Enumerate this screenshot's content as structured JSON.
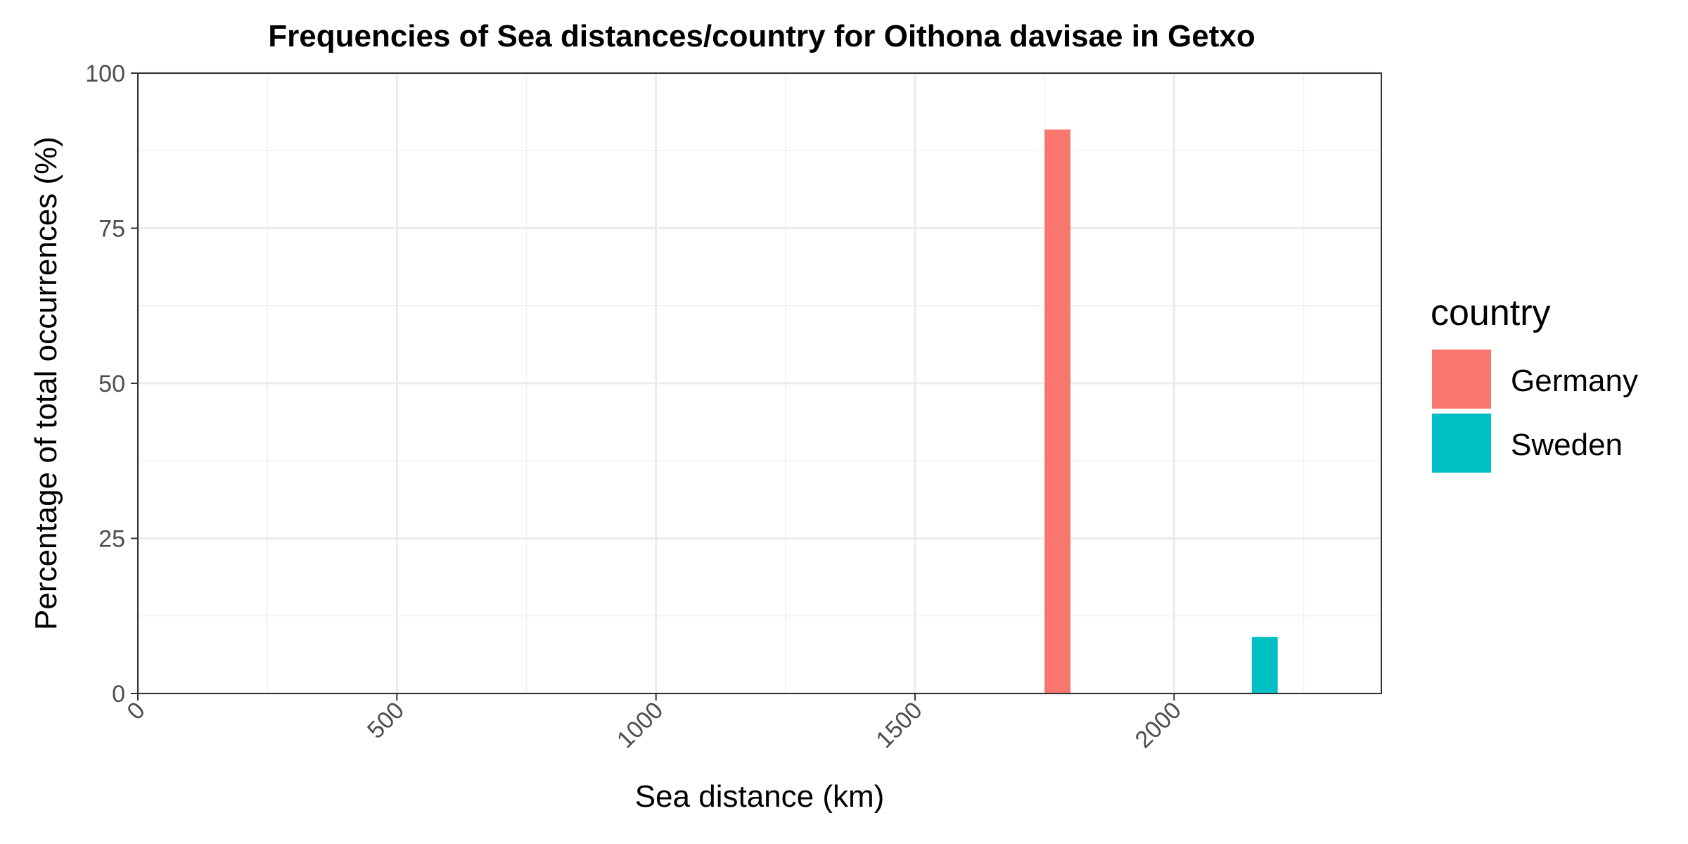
{
  "chart_data": {
    "type": "bar",
    "title": "Frequencies of Sea distances/country for Oithona davisae in Getxo",
    "xlabel": "Sea distance (km)",
    "ylabel": "Percentage of total occurrences (%)",
    "xlim": [
      0,
      2400
    ],
    "ylim": [
      0,
      100
    ],
    "x_ticks": [
      0,
      500,
      1000,
      1500,
      2000
    ],
    "x_tick_labels": [
      "0",
      "500",
      "1000",
      "1500",
      "2000"
    ],
    "x_minor_ticks": [
      250,
      750,
      1250,
      1750,
      2250
    ],
    "y_ticks": [
      0,
      25,
      50,
      75,
      100
    ],
    "y_tick_labels": [
      "0",
      "25",
      "50",
      "75",
      "100"
    ],
    "y_minor_ticks": [
      12.5,
      37.5,
      62.5,
      87.5
    ],
    "grid": true,
    "legend": {
      "title": "country",
      "placement": "right",
      "entries": [
        {
          "label": "Germany",
          "color": "#F8766D"
        },
        {
          "label": "Sweden",
          "color": "#00BFC4"
        }
      ]
    },
    "series": [
      {
        "name": "Germany",
        "color": "#F8766D",
        "bars": [
          {
            "x0": 1750,
            "x1": 1800,
            "value": 90.9
          }
        ]
      },
      {
        "name": "Sweden",
        "color": "#00BFC4",
        "bars": [
          {
            "x0": 2150,
            "x1": 2200,
            "value": 9.1
          }
        ]
      }
    ]
  }
}
